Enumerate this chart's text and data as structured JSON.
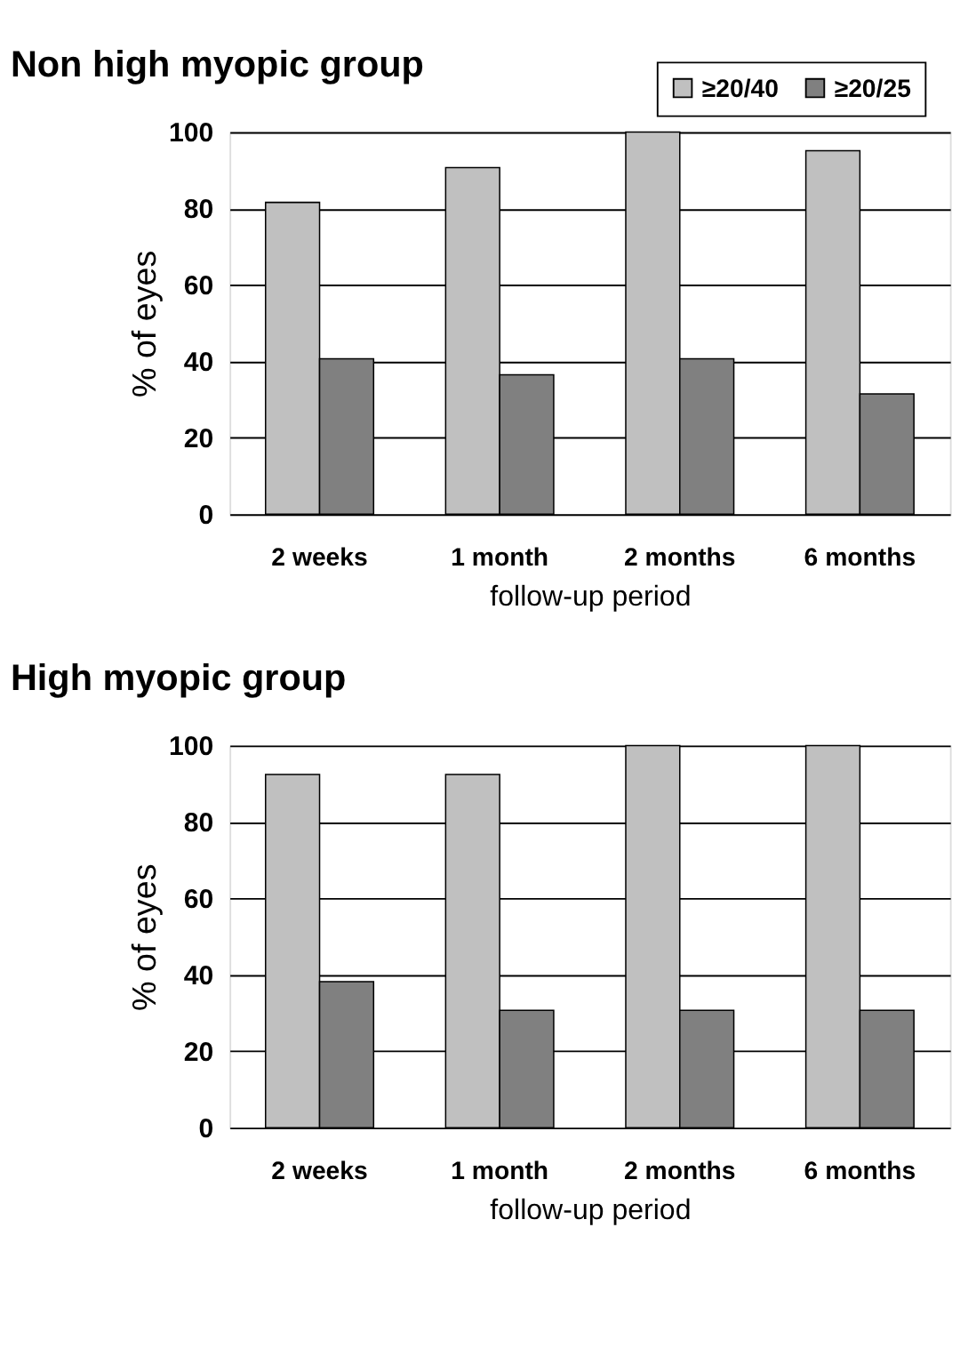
{
  "chart_data": [
    {
      "type": "bar",
      "title": "Non high myopic group",
      "xlabel": "follow-up period",
      "ylabel": "% of eyes",
      "categories": [
        "2 weeks",
        "1 month",
        "2 months",
        "6 months"
      ],
      "series": [
        {
          "name": "≥20/40",
          "color": "#c0c0c0",
          "values": [
            81.6,
            90.7,
            100,
            95.1
          ]
        },
        {
          "name": "≥20/25",
          "color": "#808080",
          "values": [
            40.7,
            36.5,
            40.7,
            31.5
          ]
        }
      ],
      "ylim": [
        0,
        100
      ],
      "yticks": [
        0,
        20,
        40,
        60,
        80,
        100
      ],
      "grid": "y",
      "legend": "top right"
    },
    {
      "type": "bar",
      "title": "High myopic group",
      "xlabel": "follow-up period",
      "ylabel": "% of eyes",
      "categories": [
        "2 weeks",
        "1 month",
        "2 months",
        "6 months"
      ],
      "series": [
        {
          "name": "≥20/40",
          "color": "#c0c0c0",
          "values": [
            92.4,
            92.4,
            100,
            100
          ]
        },
        {
          "name": "≥20/25",
          "color": "#808080",
          "values": [
            38.2,
            30.7,
            30.7,
            30.7
          ]
        }
      ],
      "ylim": [
        0,
        100
      ],
      "yticks": [
        0,
        20,
        40,
        60,
        80,
        100
      ],
      "grid": "y",
      "legend": "top right"
    }
  ]
}
